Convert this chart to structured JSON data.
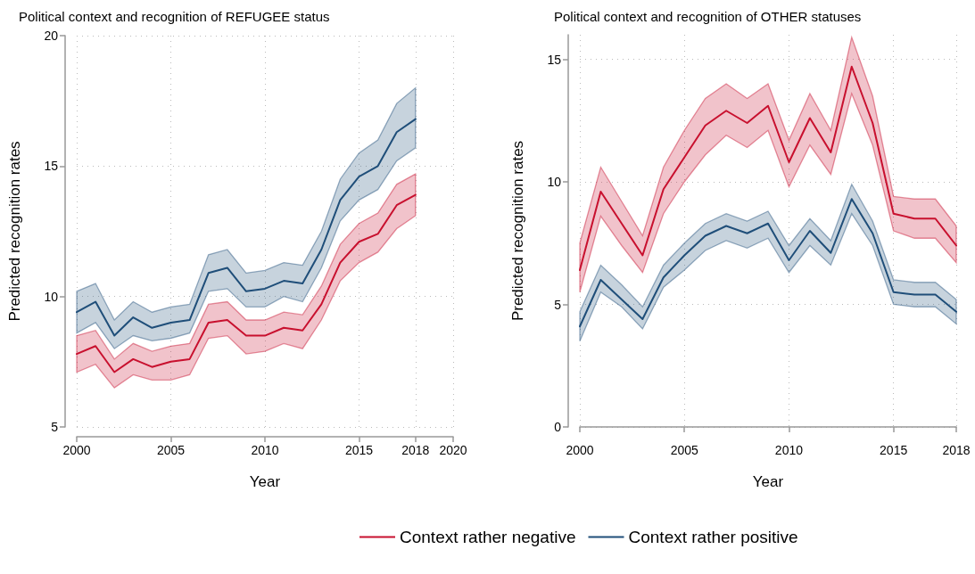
{
  "chart_data": [
    {
      "type": "line",
      "title": "Political context and recognition of REFUGEE status",
      "xlabel": "Year",
      "ylabel": "Predicted recognition rates",
      "x": [
        2000,
        2001,
        2002,
        2003,
        2004,
        2005,
        2006,
        2007,
        2008,
        2009,
        2010,
        2011,
        2012,
        2013,
        2014,
        2015,
        2016,
        2017,
        2018
      ],
      "series": [
        {
          "name": "Context rather negative",
          "color": "#c8102e",
          "values": [
            7.8,
            8.1,
            7.1,
            7.6,
            7.3,
            7.5,
            7.6,
            9.0,
            9.1,
            8.5,
            8.5,
            8.8,
            8.7,
            9.7,
            11.3,
            12.1,
            12.4,
            13.5,
            13.9
          ],
          "lower": [
            7.1,
            7.4,
            6.5,
            7.0,
            6.8,
            6.8,
            7.0,
            8.4,
            8.5,
            7.8,
            7.9,
            8.2,
            8.0,
            9.1,
            10.6,
            11.3,
            11.7,
            12.6,
            13.1
          ],
          "upper": [
            8.5,
            8.7,
            7.6,
            8.2,
            7.9,
            8.1,
            8.2,
            9.7,
            9.8,
            9.1,
            9.1,
            9.4,
            9.3,
            10.4,
            12.0,
            12.8,
            13.2,
            14.3,
            14.7
          ]
        },
        {
          "name": "Context rather positive",
          "color": "#1f4e79",
          "values": [
            9.4,
            9.8,
            8.5,
            9.2,
            8.8,
            9.0,
            9.1,
            10.9,
            11.1,
            10.2,
            10.3,
            10.6,
            10.5,
            11.8,
            13.7,
            14.6,
            15.0,
            16.3,
            16.8
          ],
          "lower": [
            8.6,
            9.0,
            8.0,
            8.5,
            8.3,
            8.4,
            8.6,
            10.2,
            10.3,
            9.6,
            9.6,
            10.0,
            9.8,
            11.1,
            12.9,
            13.7,
            14.1,
            15.2,
            15.7
          ],
          "upper": [
            10.2,
            10.5,
            9.1,
            9.8,
            9.4,
            9.6,
            9.7,
            11.6,
            11.8,
            10.9,
            11.0,
            11.3,
            11.2,
            12.5,
            14.5,
            15.5,
            16.0,
            17.4,
            18.0
          ]
        }
      ],
      "xlim": [
        2000,
        2020
      ],
      "xticks": [
        2000,
        2005,
        2010,
        2015,
        2018,
        2020
      ],
      "ylim": [
        5,
        20
      ],
      "yticks": [
        5,
        10,
        15,
        20
      ],
      "grid": true,
      "legend": "bottom",
      "line_style": "solid",
      "marker": "none"
    },
    {
      "type": "line",
      "title": "Political context and recognition of OTHER statuses",
      "xlabel": "Year",
      "ylabel": "Predicted recognition rates",
      "x": [
        2000,
        2001,
        2002,
        2003,
        2004,
        2005,
        2006,
        2007,
        2008,
        2009,
        2010,
        2011,
        2012,
        2013,
        2014,
        2015,
        2016,
        2017,
        2018
      ],
      "series": [
        {
          "color": "#c8102e",
          "values": [
            6.4,
            9.6,
            8.3,
            7.0,
            9.7,
            11.0,
            12.3,
            12.9,
            12.4,
            13.1,
            10.8,
            12.6,
            11.2,
            14.7,
            12.4,
            8.7,
            8.5,
            8.5,
            7.4
          ],
          "lower": [
            5.5,
            8.6,
            7.4,
            6.3,
            8.7,
            10.0,
            11.1,
            11.9,
            11.4,
            12.1,
            9.8,
            11.5,
            10.3,
            13.6,
            11.5,
            8.0,
            7.7,
            7.7,
            6.7
          ],
          "upper": [
            7.5,
            10.6,
            9.2,
            7.8,
            10.6,
            12.1,
            13.4,
            14.0,
            13.4,
            14.0,
            11.7,
            13.6,
            12.1,
            15.9,
            13.5,
            9.4,
            9.3,
            9.3,
            8.2
          ]
        },
        {
          "color": "#1f4e79",
          "values": [
            4.1,
            6.0,
            5.2,
            4.4,
            6.1,
            7.0,
            7.8,
            8.2,
            7.9,
            8.3,
            6.8,
            8.0,
            7.1,
            9.3,
            7.9,
            5.5,
            5.4,
            5.4,
            4.7
          ],
          "lower": [
            3.5,
            5.5,
            4.9,
            4.0,
            5.7,
            6.4,
            7.2,
            7.6,
            7.3,
            7.7,
            6.3,
            7.4,
            6.6,
            8.7,
            7.4,
            5.0,
            4.9,
            4.9,
            4.2
          ],
          "upper": [
            4.7,
            6.6,
            5.8,
            4.9,
            6.6,
            7.5,
            8.3,
            8.7,
            8.4,
            8.8,
            7.4,
            8.5,
            7.6,
            9.9,
            8.4,
            6.0,
            5.9,
            5.9,
            5.2
          ]
        }
      ],
      "xlim": [
        2000,
        2018
      ],
      "xticks": [
        2000,
        2005,
        2010,
        2015,
        2018
      ],
      "ylim": [
        0,
        16
      ],
      "yticks": [
        0,
        5,
        10,
        15
      ],
      "grid": true,
      "line_style": "solid",
      "marker": "none"
    }
  ]
}
